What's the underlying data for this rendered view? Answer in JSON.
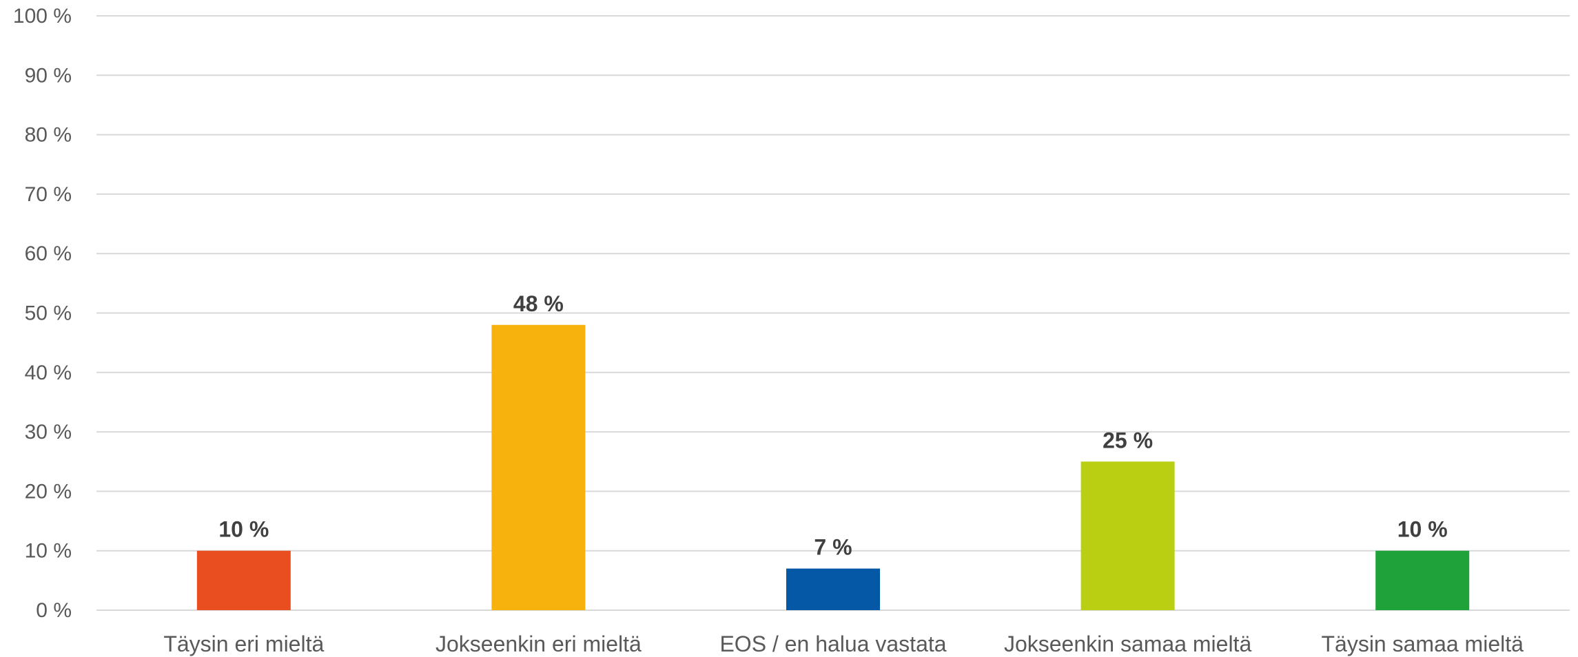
{
  "chart_data": {
    "type": "bar",
    "categories": [
      "Täysin eri mieltä",
      "Jokseenkin eri mieltä",
      "EOS / en halua vastata",
      "Jokseenkin samaa mieltä",
      "Täysin samaa mieltä"
    ],
    "values": [
      10,
      48,
      7,
      25,
      10
    ],
    "data_labels": [
      "10 %",
      "48 %",
      "7 %",
      "25 %",
      "10 %"
    ],
    "colors": [
      "#e84e1f",
      "#f8b20e",
      "#0558a5",
      "#bbcf12",
      "#20a23a"
    ],
    "y_ticks": [
      "0 %",
      "10 %",
      "20 %",
      "30 %",
      "40 %",
      "50 %",
      "60 %",
      "70 %",
      "80 %",
      "90 %",
      "100 %"
    ],
    "ylim": [
      0,
      100
    ],
    "grid": true,
    "legend": "none"
  }
}
